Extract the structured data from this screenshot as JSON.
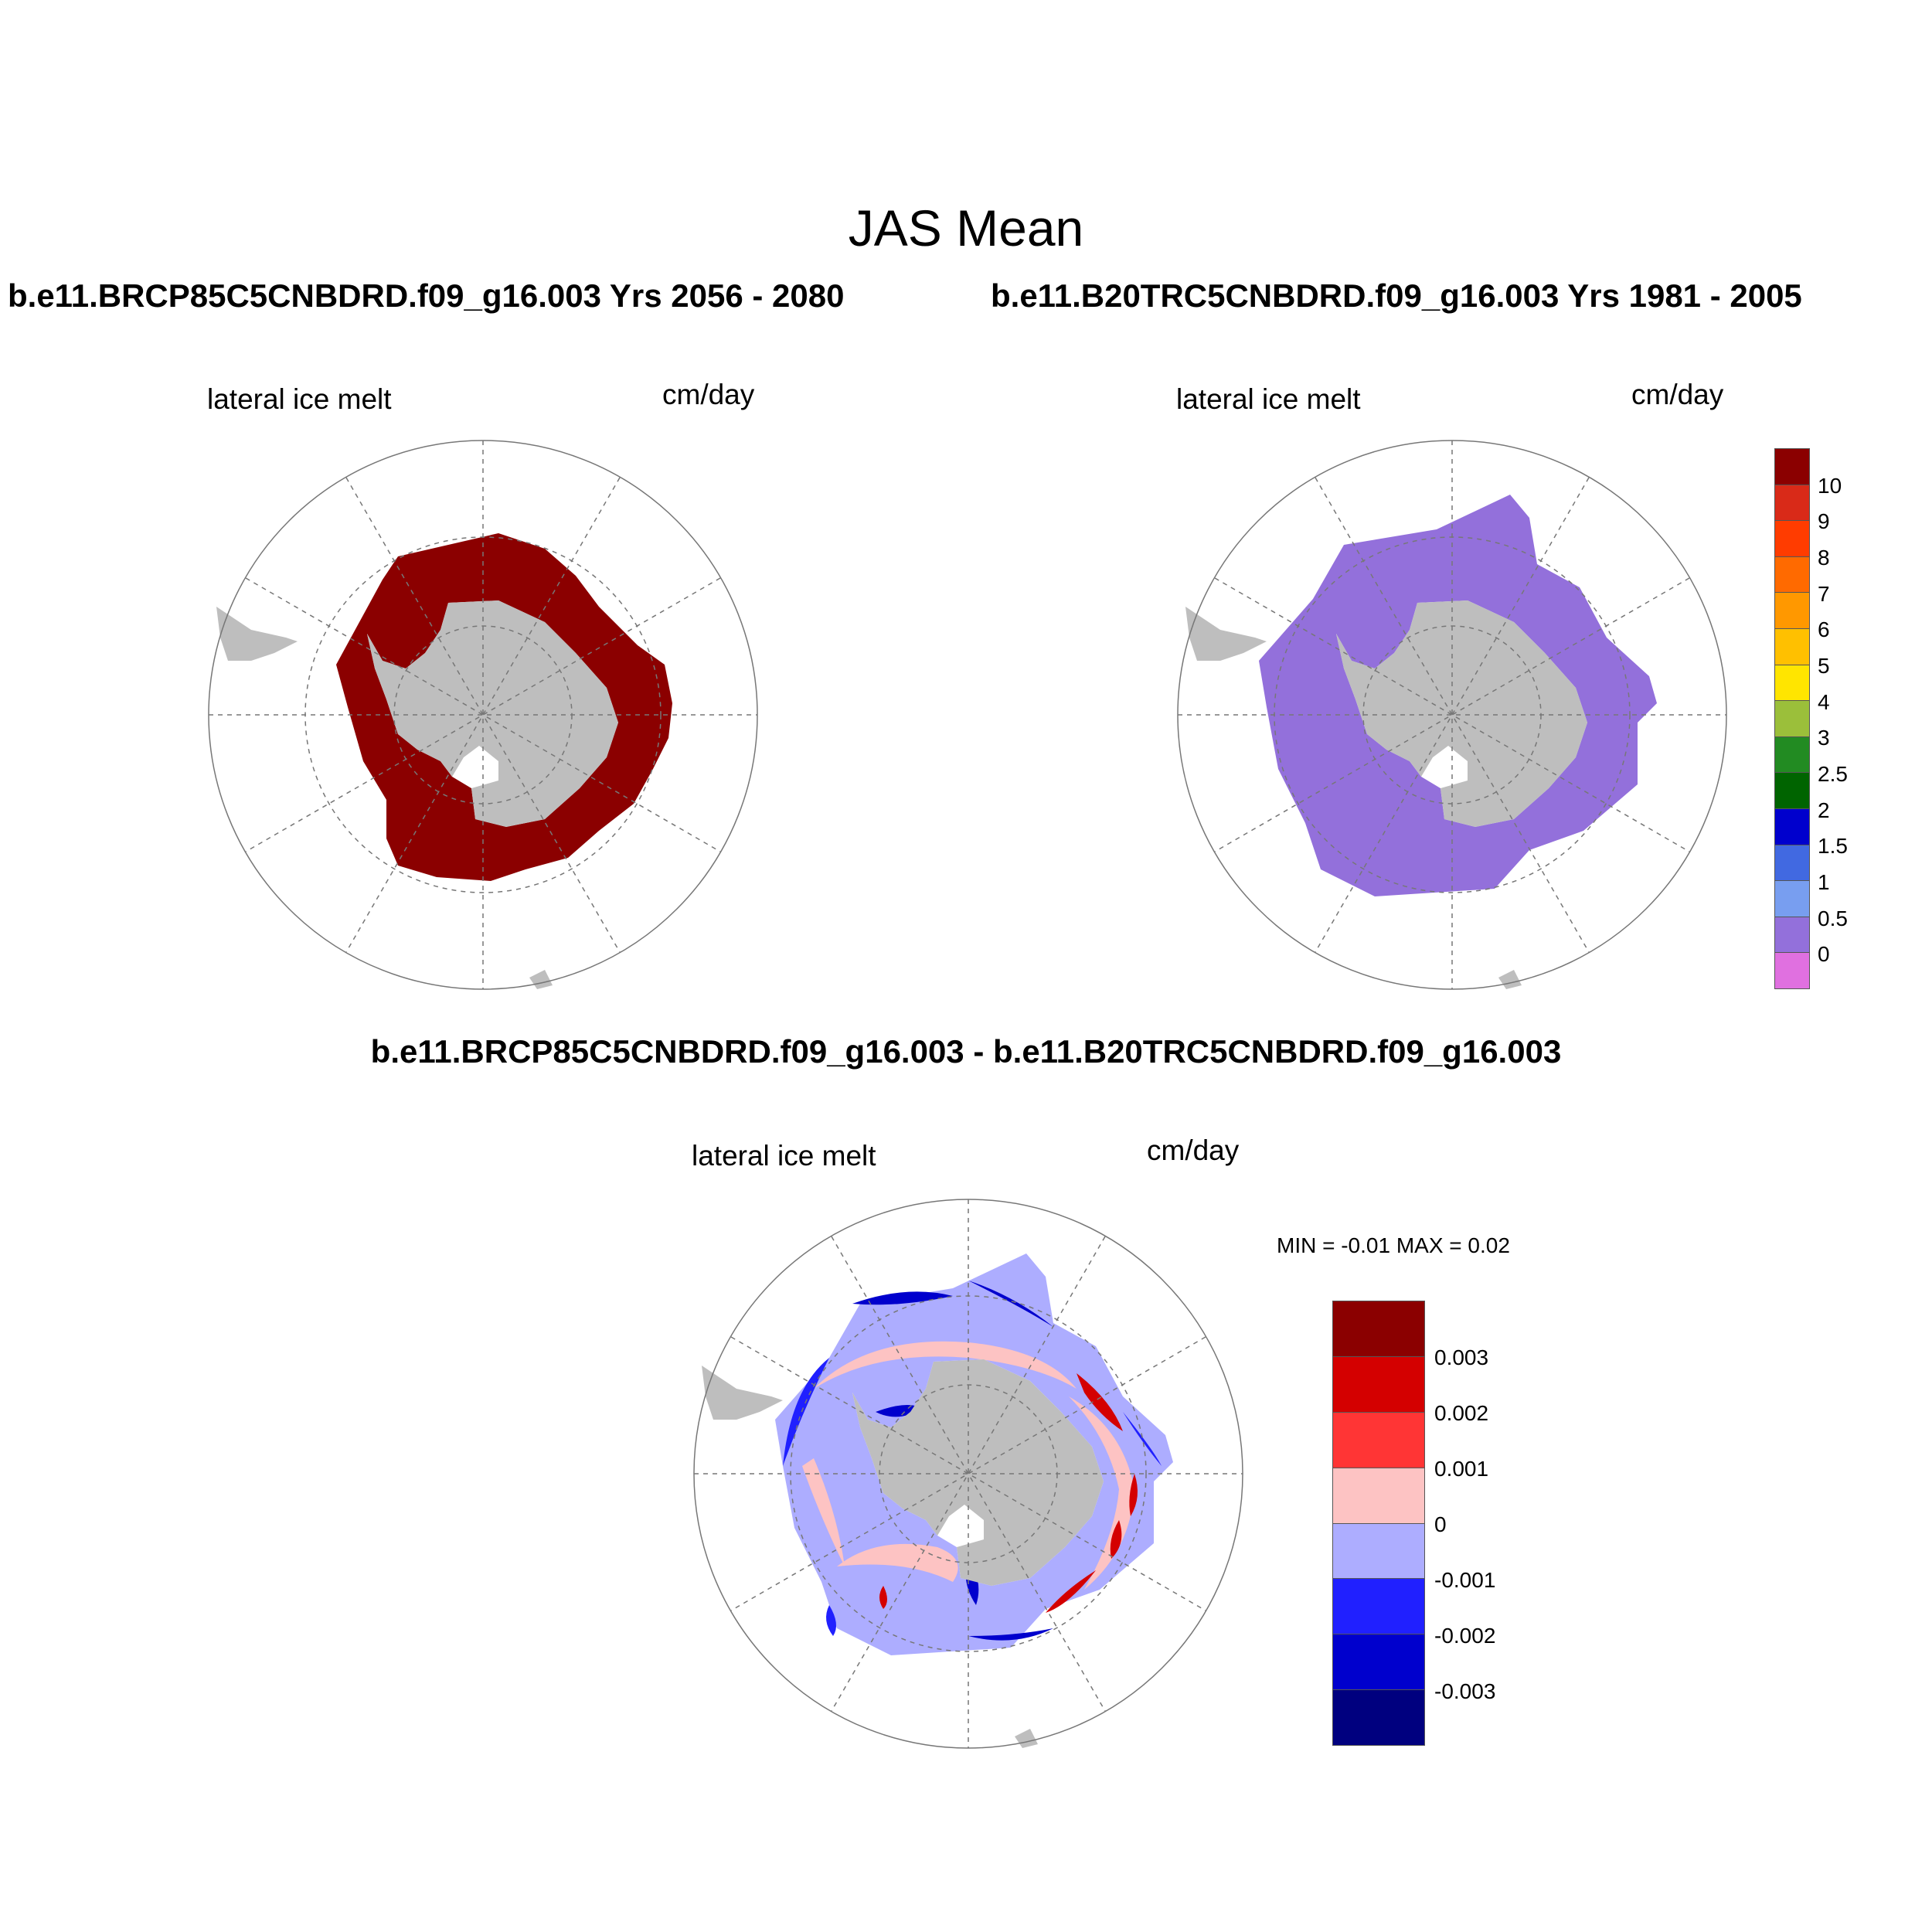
{
  "title": "JAS Mean",
  "run_titles": {
    "left": "b.e11.BRCP85C5CNBDRD.f09_g16.003  Yrs 2056 - 2080",
    "right": "b.e11.B20TRC5CNBDRD.f09_g16.003  Yrs 1981 - 2005",
    "difference": "b.e11.BRCP85C5CNBDRD.f09_g16.003 - b.e11.B20TRC5CNBDRD.f09_g16.003"
  },
  "panels": [
    {
      "variable": "lateral ice melt",
      "units": "cm/day"
    },
    {
      "variable": "lateral ice melt",
      "units": "cm/day"
    },
    {
      "variable": "lateral ice melt",
      "units": "cm/day",
      "stats": "MIN =  -0.01 MAX =   0.02"
    }
  ],
  "colorbar_main": {
    "labels": [
      "10",
      "9",
      "8",
      "7",
      "6",
      "5",
      "4",
      "3",
      "2.5",
      "2",
      "1.5",
      "1",
      "0.5",
      "0"
    ],
    "colors": [
      "#8b0000",
      "#d92a18",
      "#ff3c00",
      "#ff6a00",
      "#ff9800",
      "#ffc000",
      "#ffe500",
      "#9bbf3a",
      "#228b22",
      "#006400",
      "#0000cd",
      "#4169e1",
      "#789ef0",
      "#9370db",
      "#e070e0"
    ]
  },
  "colorbar_diff": {
    "labels": [
      "0.003",
      "0.002",
      "0.001",
      "0",
      "-0.001",
      "-0.002",
      "-0.003"
    ],
    "colors": [
      "#8b0000",
      "#d40000",
      "#ff3535",
      "#fdc3c3",
      "#adadff",
      "#2020ff",
      "#0000cd",
      "#00007f"
    ]
  },
  "map_colors": {
    "land": "#bebebe",
    "ice_future": "#8b0000",
    "ice_hist": "#9370db",
    "diff_neutral": "#adadff",
    "diff_pos": "#fdc3c3",
    "diff_strong_neg": "#0000cd",
    "diff_neg": "#2020ff",
    "diff_strong_pos": "#d40000",
    "grid": "#777777"
  }
}
